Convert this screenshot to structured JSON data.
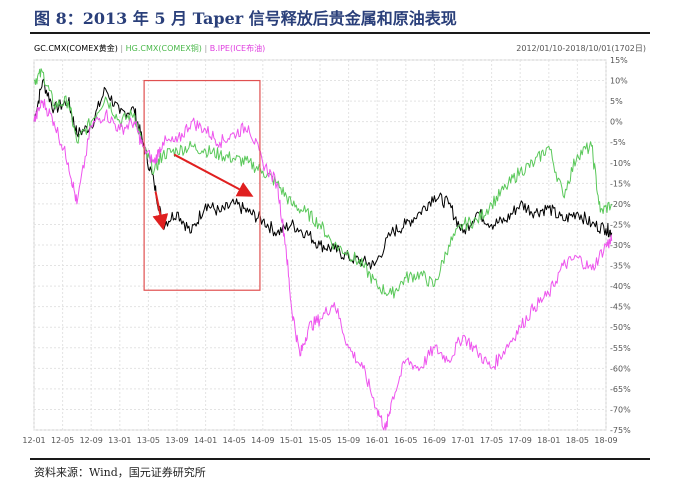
{
  "figure": {
    "title": "图 8：2013 年 5 月 Taper 信号释放后贵金属和原油表现",
    "source": "资料来源：Wind，国元证券研究所",
    "date_range": "2012/01/10-2018/10/01(1702日)"
  },
  "chart_data": {
    "type": "line",
    "xlabel": "",
    "ylabel": "",
    "ylim": [
      -75,
      15
    ],
    "grid": true,
    "legend_position": "top-left",
    "yticks": [
      15,
      10,
      5,
      0,
      -5,
      -10,
      -15,
      -20,
      -25,
      -30,
      -35,
      -40,
      -45,
      -50,
      -55,
      -60,
      -65,
      -70,
      -75
    ],
    "ytick_labels": [
      "15%",
      "10%",
      "5%",
      "0%",
      "-5%",
      "-10%",
      "-15%",
      "-20%",
      "-25%",
      "-30%",
      "-35%",
      "-40%",
      "-45%",
      "-50%",
      "-55%",
      "-60%",
      "-65%",
      "-70%",
      "-75%"
    ],
    "xtick_labels": [
      "12-01",
      "12-05",
      "12-09",
      "13-01",
      "13-05",
      "13-09",
      "14-01",
      "14-05",
      "14-09",
      "15-01",
      "15-05",
      "15-09",
      "16-01",
      "16-05",
      "16-09",
      "17-01",
      "17-05",
      "17-09",
      "18-01",
      "18-05",
      "18-09"
    ],
    "series": [
      {
        "name": "GC.CMX(COMEX黄金)",
        "color": "#000000",
        "points": [
          [
            0,
            0
          ],
          [
            0.3,
            10
          ],
          [
            0.7,
            3
          ],
          [
            1.2,
            5
          ],
          [
            1.5,
            -3
          ],
          [
            2,
            -1
          ],
          [
            2.5,
            8
          ],
          [
            3,
            2
          ],
          [
            3.5,
            3
          ],
          [
            3.8,
            -5
          ],
          [
            4.2,
            -15
          ],
          [
            4.5,
            -25
          ],
          [
            5,
            -22
          ],
          [
            5.5,
            -27
          ],
          [
            6,
            -20
          ],
          [
            6.5,
            -22
          ],
          [
            7,
            -20
          ],
          [
            7.5,
            -22
          ],
          [
            8,
            -24
          ],
          [
            8.5,
            -27
          ],
          [
            9,
            -25
          ],
          [
            9.5,
            -27
          ],
          [
            10,
            -30
          ],
          [
            10.5,
            -31
          ],
          [
            11,
            -33
          ],
          [
            11.5,
            -34
          ],
          [
            11.9,
            -35
          ],
          [
            12.5,
            -27
          ],
          [
            13,
            -25
          ],
          [
            13.5,
            -22
          ],
          [
            14,
            -18
          ],
          [
            14.5,
            -20
          ],
          [
            15,
            -27
          ],
          [
            15.5,
            -22
          ],
          [
            16,
            -25
          ],
          [
            16.5,
            -24
          ],
          [
            17,
            -20
          ],
          [
            17.5,
            -22
          ],
          [
            18,
            -21
          ],
          [
            18.5,
            -24
          ],
          [
            19,
            -22
          ],
          [
            19.5,
            -25
          ],
          [
            20,
            -26
          ],
          [
            20.2,
            -27
          ]
        ]
      },
      {
        "name": "HG.CMX(COMEX铜)",
        "color": "#5ac85a",
        "points": [
          [
            0,
            10
          ],
          [
            0.3,
            12
          ],
          [
            0.7,
            4
          ],
          [
            1.2,
            5
          ],
          [
            1.5,
            -5
          ],
          [
            2,
            0
          ],
          [
            2.5,
            6
          ],
          [
            3,
            0
          ],
          [
            3.5,
            2
          ],
          [
            3.8,
            -6
          ],
          [
            4.2,
            -12
          ],
          [
            4.5,
            -8
          ],
          [
            5,
            -7
          ],
          [
            5.5,
            -6
          ],
          [
            6,
            -7
          ],
          [
            6.5,
            -8
          ],
          [
            7,
            -9
          ],
          [
            7.5,
            -10
          ],
          [
            8,
            -12
          ],
          [
            8.5,
            -15
          ],
          [
            9,
            -20
          ],
          [
            9.5,
            -22
          ],
          [
            10,
            -25
          ],
          [
            10.5,
            -30
          ],
          [
            11,
            -32
          ],
          [
            11.5,
            -35
          ],
          [
            12,
            -40
          ],
          [
            12.5,
            -42
          ],
          [
            13,
            -38
          ],
          [
            13.5,
            -37
          ],
          [
            14,
            -40
          ],
          [
            14.5,
            -30
          ],
          [
            15,
            -25
          ],
          [
            15.5,
            -24
          ],
          [
            16,
            -20
          ],
          [
            16.5,
            -16
          ],
          [
            17,
            -12
          ],
          [
            17.5,
            -10
          ],
          [
            18,
            -6
          ],
          [
            18.5,
            -18
          ],
          [
            19,
            -8
          ],
          [
            19.5,
            -6
          ],
          [
            19.8,
            -22
          ],
          [
            20.2,
            -20
          ]
        ]
      },
      {
        "name": "B.IPE(ICE布油)",
        "color": "#ee55ee",
        "points": [
          [
            0,
            0
          ],
          [
            0.3,
            5
          ],
          [
            0.7,
            0
          ],
          [
            1.2,
            -10
          ],
          [
            1.5,
            -20
          ],
          [
            2,
            -1
          ],
          [
            2.5,
            2
          ],
          [
            3,
            -2
          ],
          [
            3.5,
            0
          ],
          [
            3.8,
            -6
          ],
          [
            4.2,
            -10
          ],
          [
            4.5,
            -5
          ],
          [
            5,
            -5
          ],
          [
            5.5,
            0
          ],
          [
            6,
            -2
          ],
          [
            6.5,
            -5
          ],
          [
            7,
            -3
          ],
          [
            7.5,
            -1
          ],
          [
            8,
            -10
          ],
          [
            8.5,
            -15
          ],
          [
            8.8,
            -30
          ],
          [
            9,
            -45
          ],
          [
            9.3,
            -57
          ],
          [
            9.6,
            -50
          ],
          [
            10,
            -48
          ],
          [
            10.5,
            -44
          ],
          [
            11,
            -55
          ],
          [
            11.5,
            -60
          ],
          [
            12,
            -70
          ],
          [
            12.3,
            -75
          ],
          [
            12.5,
            -68
          ],
          [
            13,
            -58
          ],
          [
            13.5,
            -60
          ],
          [
            14,
            -55
          ],
          [
            14.5,
            -58
          ],
          [
            15,
            -52
          ],
          [
            15.5,
            -56
          ],
          [
            16,
            -60
          ],
          [
            16.5,
            -55
          ],
          [
            17,
            -50
          ],
          [
            17.5,
            -45
          ],
          [
            18,
            -42
          ],
          [
            18.5,
            -35
          ],
          [
            19,
            -33
          ],
          [
            19.5,
            -36
          ],
          [
            20,
            -30
          ],
          [
            20.2,
            -29
          ]
        ]
      }
    ]
  }
}
